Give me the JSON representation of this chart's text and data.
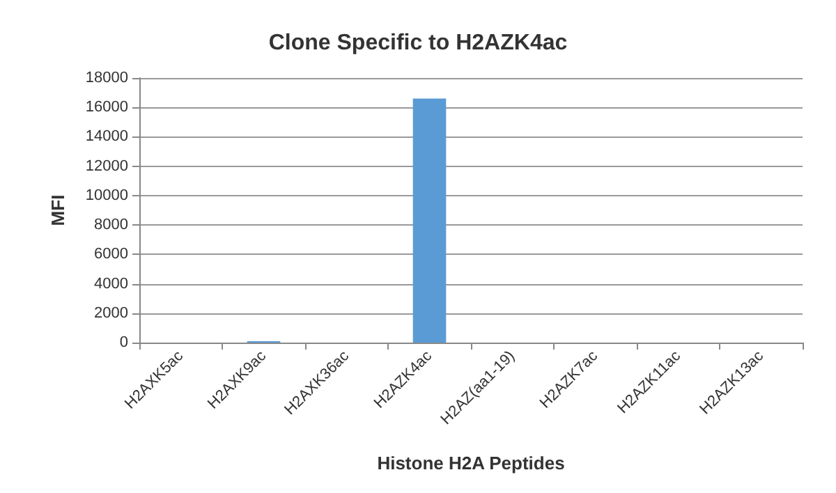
{
  "chart_data": {
    "type": "bar",
    "title": "Clone Specific to H2AZK4ac",
    "xlabel": "Histone H2A Peptides",
    "ylabel": "MFI",
    "categories": [
      "H2AXK5ac",
      "H2AXK9ac",
      "H2AXK36ac",
      "H2AZK4ac",
      "H2AZ(aa1-19)",
      "H2AZK7ac",
      "H2AZK11ac",
      "H2AZK13ac"
    ],
    "values": [
      0,
      100,
      0,
      16600,
      0,
      0,
      0,
      0
    ],
    "color": "#5b9bd5",
    "ylim": [
      0,
      18000
    ],
    "yticks": [
      0,
      2000,
      4000,
      6000,
      8000,
      10000,
      12000,
      14000,
      16000,
      18000
    ],
    "grid": "y"
  }
}
